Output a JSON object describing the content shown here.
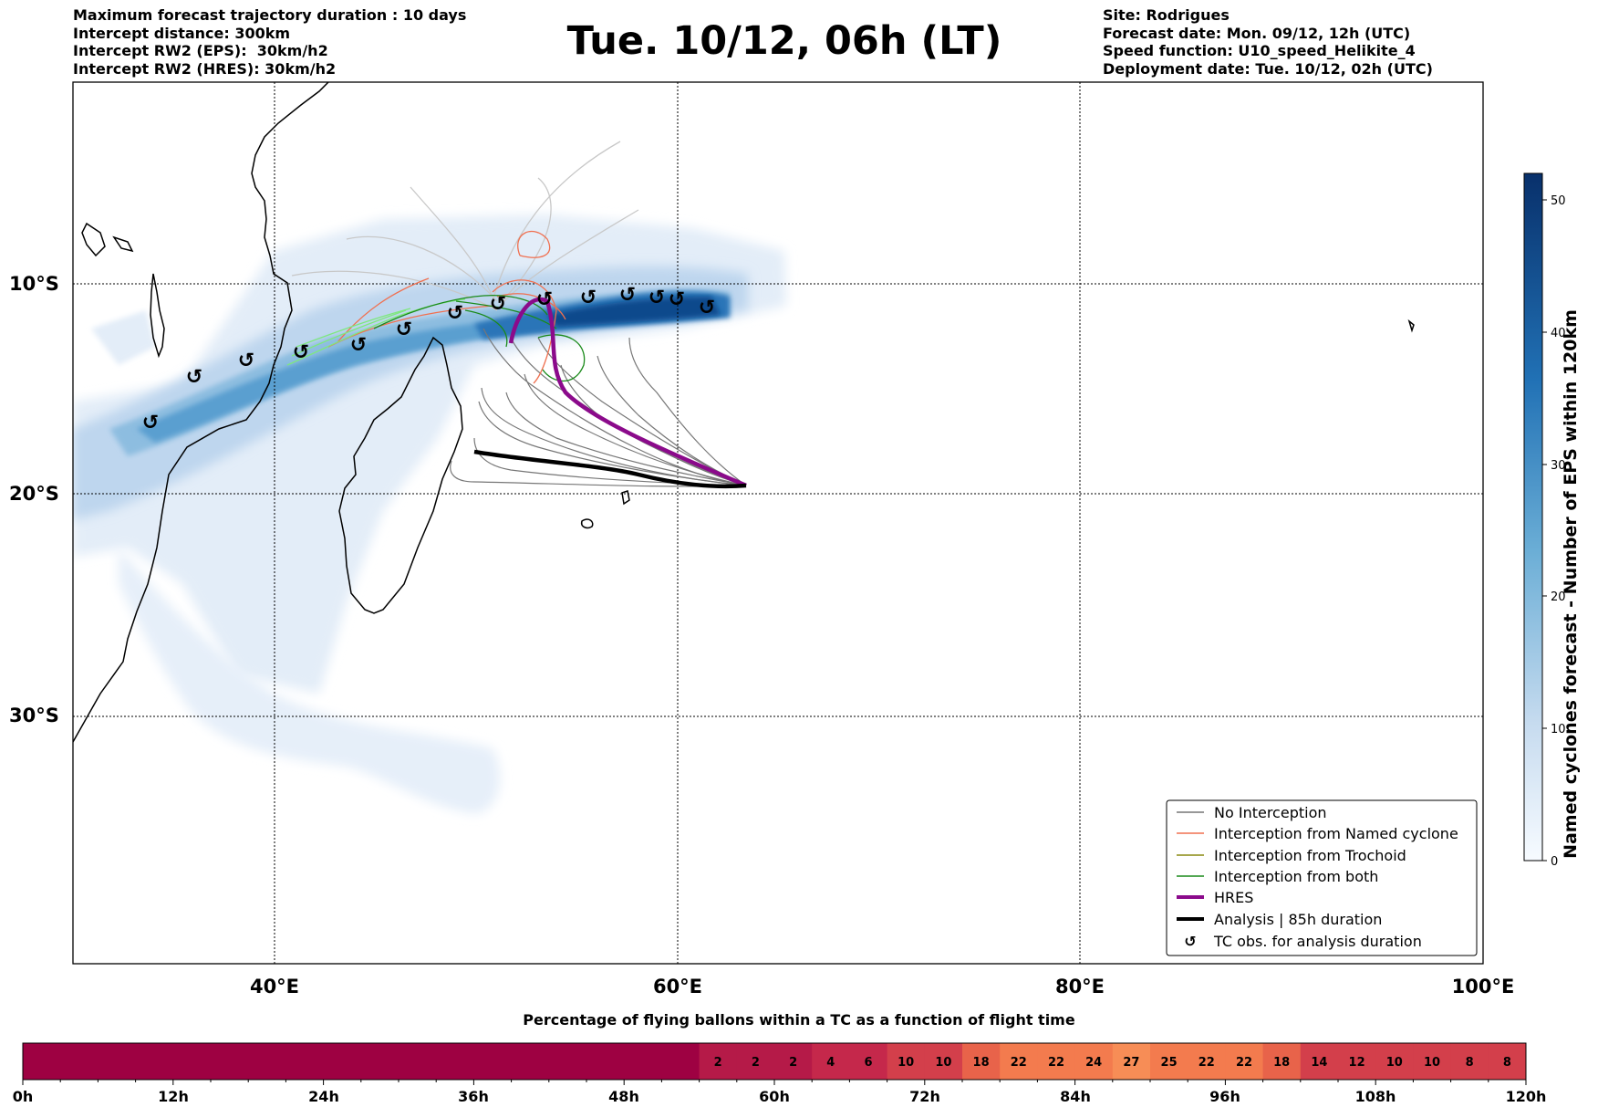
{
  "header": {
    "left_lines": [
      "Maximum forecast trajectory duration : 10 days",
      "Intercept distance: 300km",
      "Intercept RW2 (EPS):  30km/h2",
      "Intercept RW2 (HRES): 30km/h2"
    ],
    "title": "Tue. 10/12, 06h (LT)",
    "right_lines": [
      "Site: Rodrigues",
      "Forecast date: Mon. 09/12, 12h (UTC)",
      "Speed function: U10_speed_Helikite_4",
      "Deployment date: Tue. 10/12, 02h (UTC)"
    ]
  },
  "map": {
    "lon_labels": [
      "40°E",
      "60°E",
      "80°E",
      "100°E"
    ],
    "lat_labels": [
      "10°S",
      "20°S",
      "30°S"
    ],
    "colors": {
      "no_interception": "#777777",
      "named_cyclone": "#f07050",
      "trochoid": "#8a8a10",
      "both": "#1a8a1a",
      "hres": "#8b0a8b",
      "analysis": "#000000",
      "eps_light": "#dce8f5",
      "eps_dark": "#08306b"
    }
  },
  "legend": {
    "items": [
      {
        "label": "No Interception",
        "icon": "gray-line"
      },
      {
        "label": "Interception from Named cyclone",
        "icon": "orange-line"
      },
      {
        "label": "Interception from Trochoid",
        "icon": "olive-line"
      },
      {
        "label": "Interception from both",
        "icon": "green-line"
      },
      {
        "label": "HRES",
        "icon": "purple-thick-line"
      },
      {
        "label": "Analysis | 85h duration",
        "icon": "black-thick-line"
      },
      {
        "label": "TC obs. for analysis duration",
        "icon": "cyclone-symbol"
      }
    ]
  },
  "colorbar": {
    "label": "Named cyclones forecast - Number of EPS within 120km",
    "ticks": [
      "0",
      "10",
      "20",
      "30",
      "40",
      "50"
    ],
    "max": 52
  },
  "timeline": {
    "title": "Percentage of flying ballons within a TC as a function of flight time",
    "axis_labels": [
      "0h",
      "12h",
      "24h",
      "36h",
      "48h",
      "60h",
      "72h",
      "84h",
      "96h",
      "108h",
      "120h"
    ],
    "cell_values": [
      "2",
      "2",
      "2",
      "4",
      "6",
      "10",
      "10",
      "18",
      "22",
      "22",
      "24",
      "27",
      "25",
      "22",
      "22",
      "18",
      "14",
      "12",
      "10",
      "10",
      "8",
      "8"
    ]
  }
}
